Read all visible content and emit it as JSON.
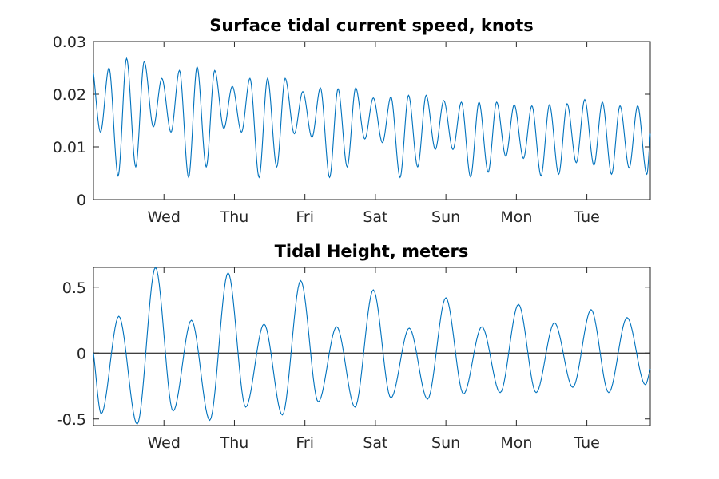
{
  "chart_data": [
    {
      "type": "line",
      "title": "Surface tidal current speed, knots",
      "xlabel": "",
      "ylabel": "",
      "x_unit": "days",
      "xlim": [
        0,
        7.9
      ],
      "ylim": [
        0,
        0.03
      ],
      "yticks": [
        0,
        0.01,
        0.02,
        0.03
      ],
      "ytick_labels": [
        "0",
        "0.01",
        "0.02",
        "0.03"
      ],
      "xticks": [
        1,
        2,
        3,
        4,
        5,
        6,
        7
      ],
      "xtick_labels": [
        "Wed",
        "Thu",
        "Fri",
        "Sat",
        "Sun",
        "Mon",
        "Tue"
      ],
      "grid": false,
      "series_color": "#0072bd",
      "series": [
        {
          "name": "",
          "x": [
            0,
            0.1,
            0.22,
            0.35,
            0.47,
            0.6,
            0.72,
            0.85,
            0.97,
            1.1,
            1.22,
            1.35,
            1.47,
            1.6,
            1.72,
            1.85,
            1.97,
            2.1,
            2.22,
            2.35,
            2.47,
            2.6,
            2.72,
            2.85,
            2.97,
            3.1,
            3.22,
            3.35,
            3.47,
            3.6,
            3.72,
            3.85,
            3.97,
            4.1,
            4.22,
            4.35,
            4.47,
            4.6,
            4.72,
            4.85,
            4.97,
            5.1,
            5.22,
            5.35,
            5.47,
            5.6,
            5.72,
            5.85,
            5.97,
            6.1,
            6.22,
            6.35,
            6.47,
            6.6,
            6.72,
            6.85,
            6.97,
            7.1,
            7.22,
            7.35,
            7.47,
            7.6,
            7.72,
            7.85,
            7.9
          ],
          "y": [
            0.024,
            0.0128,
            0.025,
            0.0045,
            0.0268,
            0.0062,
            0.0262,
            0.0138,
            0.023,
            0.0128,
            0.0245,
            0.0042,
            0.0252,
            0.0062,
            0.0245,
            0.0135,
            0.0215,
            0.0128,
            0.023,
            0.0042,
            0.023,
            0.0062,
            0.023,
            0.0125,
            0.0205,
            0.0118,
            0.0212,
            0.0042,
            0.021,
            0.0062,
            0.0212,
            0.0115,
            0.0193,
            0.0108,
            0.0195,
            0.0042,
            0.0198,
            0.0062,
            0.0198,
            0.0095,
            0.0188,
            0.0095,
            0.0185,
            0.0043,
            0.0185,
            0.0052,
            0.0185,
            0.0082,
            0.018,
            0.0078,
            0.0178,
            0.0045,
            0.018,
            0.0048,
            0.0182,
            0.007,
            0.019,
            0.0065,
            0.0185,
            0.0048,
            0.0178,
            0.006,
            0.0178,
            0.0048,
            0.0125
          ]
        }
      ]
    },
    {
      "type": "line",
      "title": "Tidal Height, meters",
      "xlabel": "",
      "ylabel": "",
      "x_unit": "days",
      "xlim": [
        0,
        7.9
      ],
      "ylim": [
        -0.55,
        0.65
      ],
      "yticks": [
        -0.5,
        0,
        0.5
      ],
      "ytick_labels": [
        "-0.5",
        "0",
        "0.5"
      ],
      "xticks": [
        1,
        2,
        3,
        4,
        5,
        6,
        7
      ],
      "xtick_labels": [
        "Wed",
        "Thu",
        "Fri",
        "Sat",
        "Sun",
        "Mon",
        "Tue"
      ],
      "grid": false,
      "reference_line": 0,
      "series_color": "#0072bd",
      "series": [
        {
          "name": "",
          "x": [
            0,
            0.11,
            0.36,
            0.62,
            0.88,
            1.13,
            1.39,
            1.65,
            1.91,
            2.16,
            2.42,
            2.68,
            2.94,
            3.19,
            3.45,
            3.71,
            3.97,
            4.22,
            4.48,
            4.74,
            5,
            5.25,
            5.51,
            5.77,
            6.03,
            6.28,
            6.54,
            6.8,
            7.06,
            7.31,
            7.57,
            7.83,
            7.9
          ],
          "y": [
            0,
            -0.46,
            0.28,
            -0.54,
            0.65,
            -0.44,
            0.25,
            -0.51,
            0.61,
            -0.41,
            0.22,
            -0.47,
            0.55,
            -0.37,
            0.2,
            -0.41,
            0.48,
            -0.34,
            0.19,
            -0.35,
            0.42,
            -0.31,
            0.2,
            -0.3,
            0.37,
            -0.3,
            0.23,
            -0.26,
            0.33,
            -0.3,
            0.27,
            -0.24,
            -0.12
          ]
        }
      ]
    }
  ]
}
